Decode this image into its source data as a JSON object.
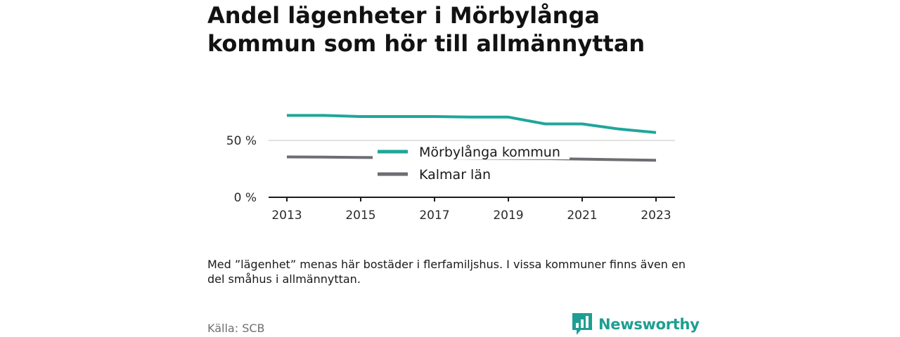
{
  "title": "Andel lägenheter i Mörbylånga kommun som hör till allmännyttan",
  "note": "Med ”lägenhet” menas här bostäder i flerfamiljshus. I vissa kommuner finns även en del småhus i allmännyttan.",
  "source": "Källa: SCB",
  "brand": "Newsworthy",
  "colors": {
    "primary": "#1fa69a",
    "secondary": "#6d6d73",
    "accent_brand": "#1e9e92"
  },
  "chart_data": {
    "type": "line",
    "x": [
      2013,
      2014,
      2015,
      2016,
      2017,
      2018,
      2019,
      2020,
      2021,
      2022,
      2023
    ],
    "series": [
      {
        "name": "Mörbylånga kommun",
        "color": "#1fa69a",
        "values": [
          72.0,
          72.0,
          71.0,
          71.0,
          71.0,
          70.5,
          70.5,
          64.5,
          64.5,
          60.0,
          57.0
        ]
      },
      {
        "name": "Kalmar län",
        "color": "#6d6d73",
        "values": [
          35.5,
          35.3,
          35.0,
          34.8,
          34.6,
          34.4,
          34.2,
          34.0,
          33.6,
          33.0,
          32.5
        ]
      }
    ],
    "xticks": [
      "2013",
      "2015",
      "2017",
      "2019",
      "2021",
      "2023"
    ],
    "yticks": [
      "0 %",
      "50 %"
    ],
    "ytick_values": [
      0,
      50
    ],
    "ylim": [
      0,
      100
    ],
    "xlim": [
      2013,
      2023
    ],
    "grid": true,
    "legend_position": "center"
  }
}
